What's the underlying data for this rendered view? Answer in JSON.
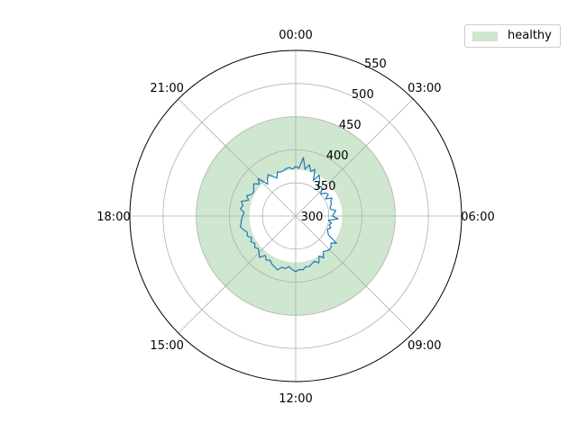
{
  "colors": {
    "band": "#cfe6cf",
    "line": "#1f77b4",
    "grid": "#b0b0b0"
  },
  "legend": {
    "label": "healthy",
    "placement": "upper-right"
  },
  "chart_data": {
    "type": "polar-line",
    "title": "",
    "angle_labels": [
      "00:00",
      "03:00",
      "06:00",
      "09:00",
      "12:00",
      "15:00",
      "18:00",
      "21:00"
    ],
    "radial_ticks": [
      300,
      350,
      400,
      450,
      500,
      550
    ],
    "r_range": [
      300,
      550
    ],
    "grid": true,
    "healthy_band": {
      "label": "healthy",
      "r_min": 370,
      "r_max": 450
    },
    "series": [
      {
        "hours": [
          0,
          0.25,
          0.5,
          0.75,
          1,
          1.25,
          1.5,
          1.75,
          2,
          2.25,
          2.5,
          2.75,
          3,
          3.25,
          3.5,
          3.75,
          4,
          4.25,
          4.5,
          4.75,
          5,
          5.25,
          5.5,
          5.75,
          6,
          6.25,
          6.5,
          6.75,
          7,
          7.25,
          7.5,
          7.75,
          8,
          8.25,
          8.5,
          8.75,
          9,
          9.25,
          9.5,
          9.75,
          10,
          10.25,
          10.5,
          10.75,
          11,
          11.25,
          11.5,
          11.75,
          12,
          12.25,
          12.5,
          12.75,
          13,
          13.25,
          13.5,
          13.75,
          14,
          14.25,
          14.5,
          14.75,
          15,
          15.25,
          15.5,
          15.75,
          16,
          16.25,
          16.5,
          16.75,
          17,
          17.25,
          17.5,
          17.75,
          18,
          18.25,
          18.5,
          18.75,
          19,
          19.25,
          19.5,
          19.75,
          20,
          20.25,
          20.5,
          20.75,
          21,
          21.25,
          21.5,
          21.75,
          22,
          22.25,
          22.5,
          22.75,
          23,
          23.25,
          23.5,
          23.75
        ],
        "values": [
          375,
          372,
          389,
          372,
          380,
          371,
          376,
          360,
          371,
          365,
          355,
          359,
          356,
          350,
          357,
          359,
          352,
          361,
          357,
          357,
          354,
          353,
          361,
          358,
          355,
          364,
          350,
          355,
          352,
          356,
          352,
          354,
          357,
          374,
          367,
          371,
          372,
          370,
          368,
          376,
          370,
          379,
          374,
          376,
          379,
          378,
          382,
          381,
          384,
          381,
          377,
          381,
          380,
          386,
          383,
          381,
          377,
          380,
          375,
          383,
          378,
          375,
          378,
          374,
          378,
          374,
          379,
          377,
          381,
          385,
          383,
          382,
          380,
          378,
          384,
          381,
          385,
          375,
          380,
          374,
          373,
          376,
          380,
          373,
          380,
          364,
          370,
          375,
          369,
          364,
          372,
          370,
          371,
          373,
          374,
          371
        ]
      }
    ]
  }
}
